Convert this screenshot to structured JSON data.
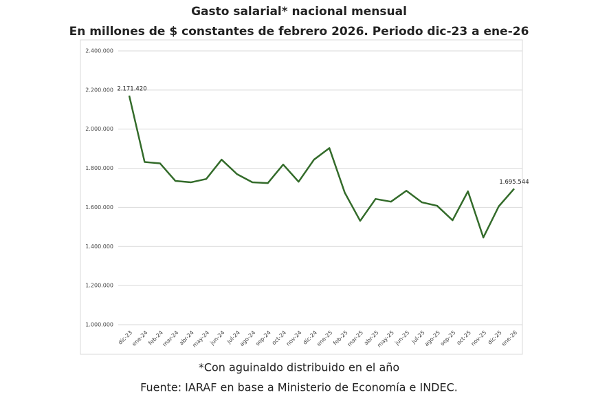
{
  "chart_data": {
    "type": "line",
    "title": "Gasto salarial* nacional mensual",
    "subtitle": "En millones de $ constantes de febrero 2026. Periodo dic-23 a ene-26",
    "notes": [
      "*Con aguinaldo distribuido en el año",
      "Fuente: IARAF en base a Ministerio de Economía e INDEC."
    ],
    "categories": [
      "dic-23",
      "ene-24",
      "feb-24",
      "mar-24",
      "abr-24",
      "may-24",
      "jun-24",
      "jul-24",
      "ago-24",
      "sep-24",
      "oct-24",
      "nov-24",
      "dic-24",
      "ene-25",
      "feb-25",
      "mar-25",
      "abr-25",
      "may-25",
      "jun-25",
      "jul-25",
      "ago-25",
      "sep-25",
      "oct-25",
      "nov-25",
      "dic-25",
      "ene-26"
    ],
    "series": [
      {
        "name": "Gasto salarial",
        "color": "#336b2a",
        "values": [
          2171420,
          1832000,
          1825000,
          1735000,
          1728000,
          1745000,
          1844000,
          1770000,
          1728000,
          1724000,
          1819000,
          1731000,
          1844000,
          1903000,
          1675000,
          1531000,
          1643000,
          1629000,
          1685000,
          1626000,
          1608000,
          1534000,
          1682000,
          1446000,
          1605000,
          1695544
        ],
        "value_labels": [
          "2.171.420",
          null,
          null,
          null,
          null,
          null,
          null,
          null,
          null,
          null,
          null,
          null,
          null,
          null,
          null,
          null,
          null,
          null,
          null,
          null,
          null,
          null,
          null,
          null,
          null,
          "1.695.544"
        ]
      }
    ],
    "ylim": [
      1000000,
      2400000
    ],
    "yticks": [
      {
        "value": 1000000,
        "label": "1.000.000"
      },
      {
        "value": 1200000,
        "label": "1.200.000"
      },
      {
        "value": 1400000,
        "label": "1.400.000"
      },
      {
        "value": 1600000,
        "label": "1.600.000"
      },
      {
        "value": 1800000,
        "label": "1.800.000"
      },
      {
        "value": 2000000,
        "label": "2.000.000"
      },
      {
        "value": 2200000,
        "label": "2.200.000"
      },
      {
        "value": 2400000,
        "label": "2.400.000"
      }
    ],
    "grid": true
  }
}
